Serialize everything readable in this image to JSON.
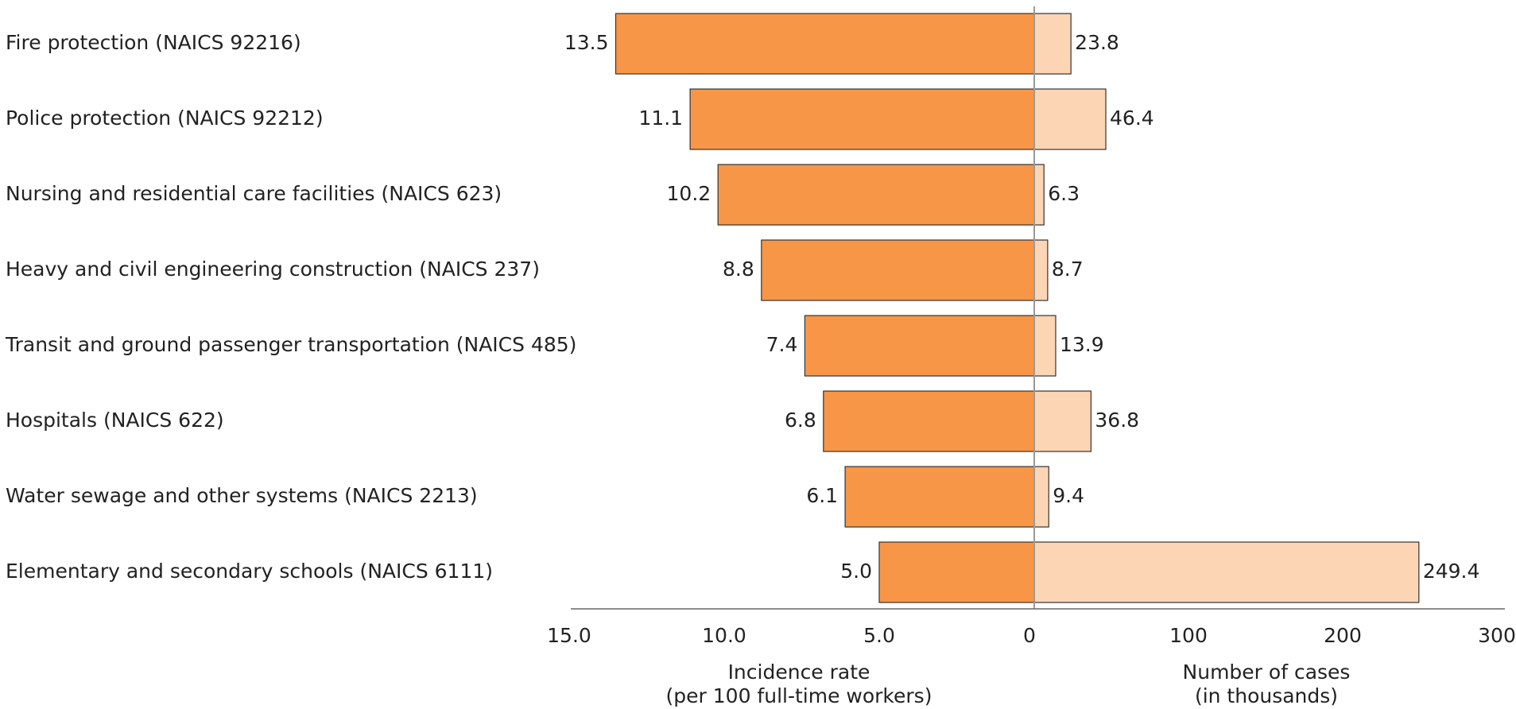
{
  "chart_data": {
    "type": "bar",
    "orientation": "horizontal-butterfly",
    "grid": false,
    "categories": [
      "Fire protection (NAICS 92216)",
      "Police protection (NAICS 92212)",
      "Nursing and residential care facilities (NAICS 623)",
      "Heavy and civil engineering construction (NAICS 237)",
      "Transit and ground passenger transportation (NAICS 485)",
      "Hospitals (NAICS 622)",
      "Water sewage and other systems (NAICS 2213)",
      "Elementary and secondary schools (NAICS 6111)"
    ],
    "series": [
      {
        "side": "left",
        "values": [
          13.5,
          11.1,
          10.2,
          8.8,
          7.4,
          6.8,
          6.1,
          5.0
        ],
        "value_labels": [
          "13.5",
          "11.1",
          "10.2",
          "8.8",
          "7.4",
          "6.8",
          "6.1",
          "5.0"
        ],
        "color": "#f79646"
      },
      {
        "side": "right",
        "values": [
          23.8,
          46.4,
          6.3,
          8.7,
          13.9,
          36.8,
          9.4,
          249.4
        ],
        "value_labels": [
          "23.8",
          "46.4",
          "6.3",
          "8.7",
          "13.9",
          "36.8",
          "9.4",
          "249.4"
        ],
        "color": "#fcd5b5"
      }
    ],
    "left_axis": {
      "label_line1": "Incidence rate",
      "label_line2": "(per 100 full-time workers)",
      "range": [
        15,
        0
      ],
      "ticks": [
        15,
        10,
        5
      ],
      "tick_labels": [
        "15.0",
        "10.0",
        "5.0"
      ]
    },
    "center_tick_label": "0",
    "right_axis": {
      "label_line1": "Number of cases",
      "label_line2": "(in thousands)",
      "range": [
        0,
        300
      ],
      "ticks": [
        100,
        200,
        300
      ],
      "tick_labels": [
        "100",
        "200",
        "300"
      ]
    },
    "colors": {
      "bar_outline": "#333333",
      "axis_line": "#666666",
      "center_line": "#999999"
    }
  }
}
